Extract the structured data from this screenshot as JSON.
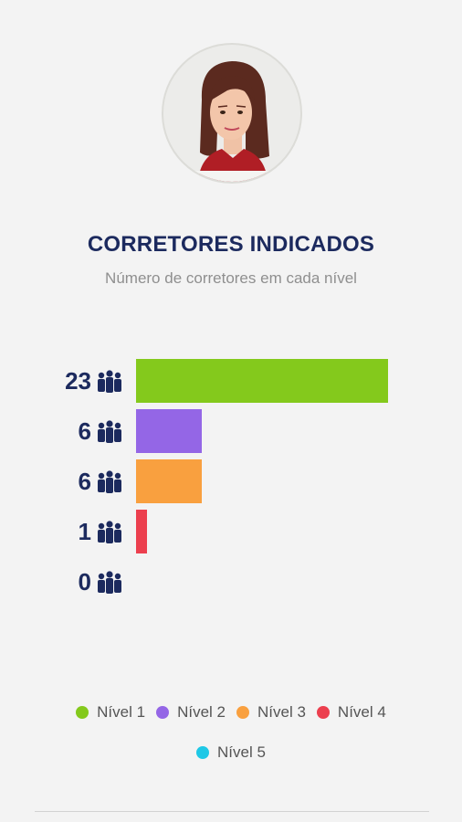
{
  "header": {
    "title": "CORRETORES INDICADOS",
    "subtitle": "Número de corretores em cada nível"
  },
  "avatar": {
    "icon": "woman-avatar-icon"
  },
  "chart_data": {
    "type": "bar",
    "orientation": "horizontal",
    "categories": [
      "Nível 1",
      "Nível 2",
      "Nível 3",
      "Nível 4",
      "Nível 5"
    ],
    "values": [
      23,
      6,
      6,
      1,
      0
    ],
    "colors": [
      "#84c91c",
      "#9466e6",
      "#f9a03f",
      "#ec3f4e",
      "#1ec8e6"
    ],
    "value_labels": [
      "23",
      "6",
      "6",
      "1",
      "0"
    ],
    "count_icon": "people-group-icon",
    "legend": [
      "Nível 1",
      "Nível 2",
      "Nível 3",
      "Nível 4",
      "Nível 5"
    ],
    "legend_position": "bottom"
  }
}
